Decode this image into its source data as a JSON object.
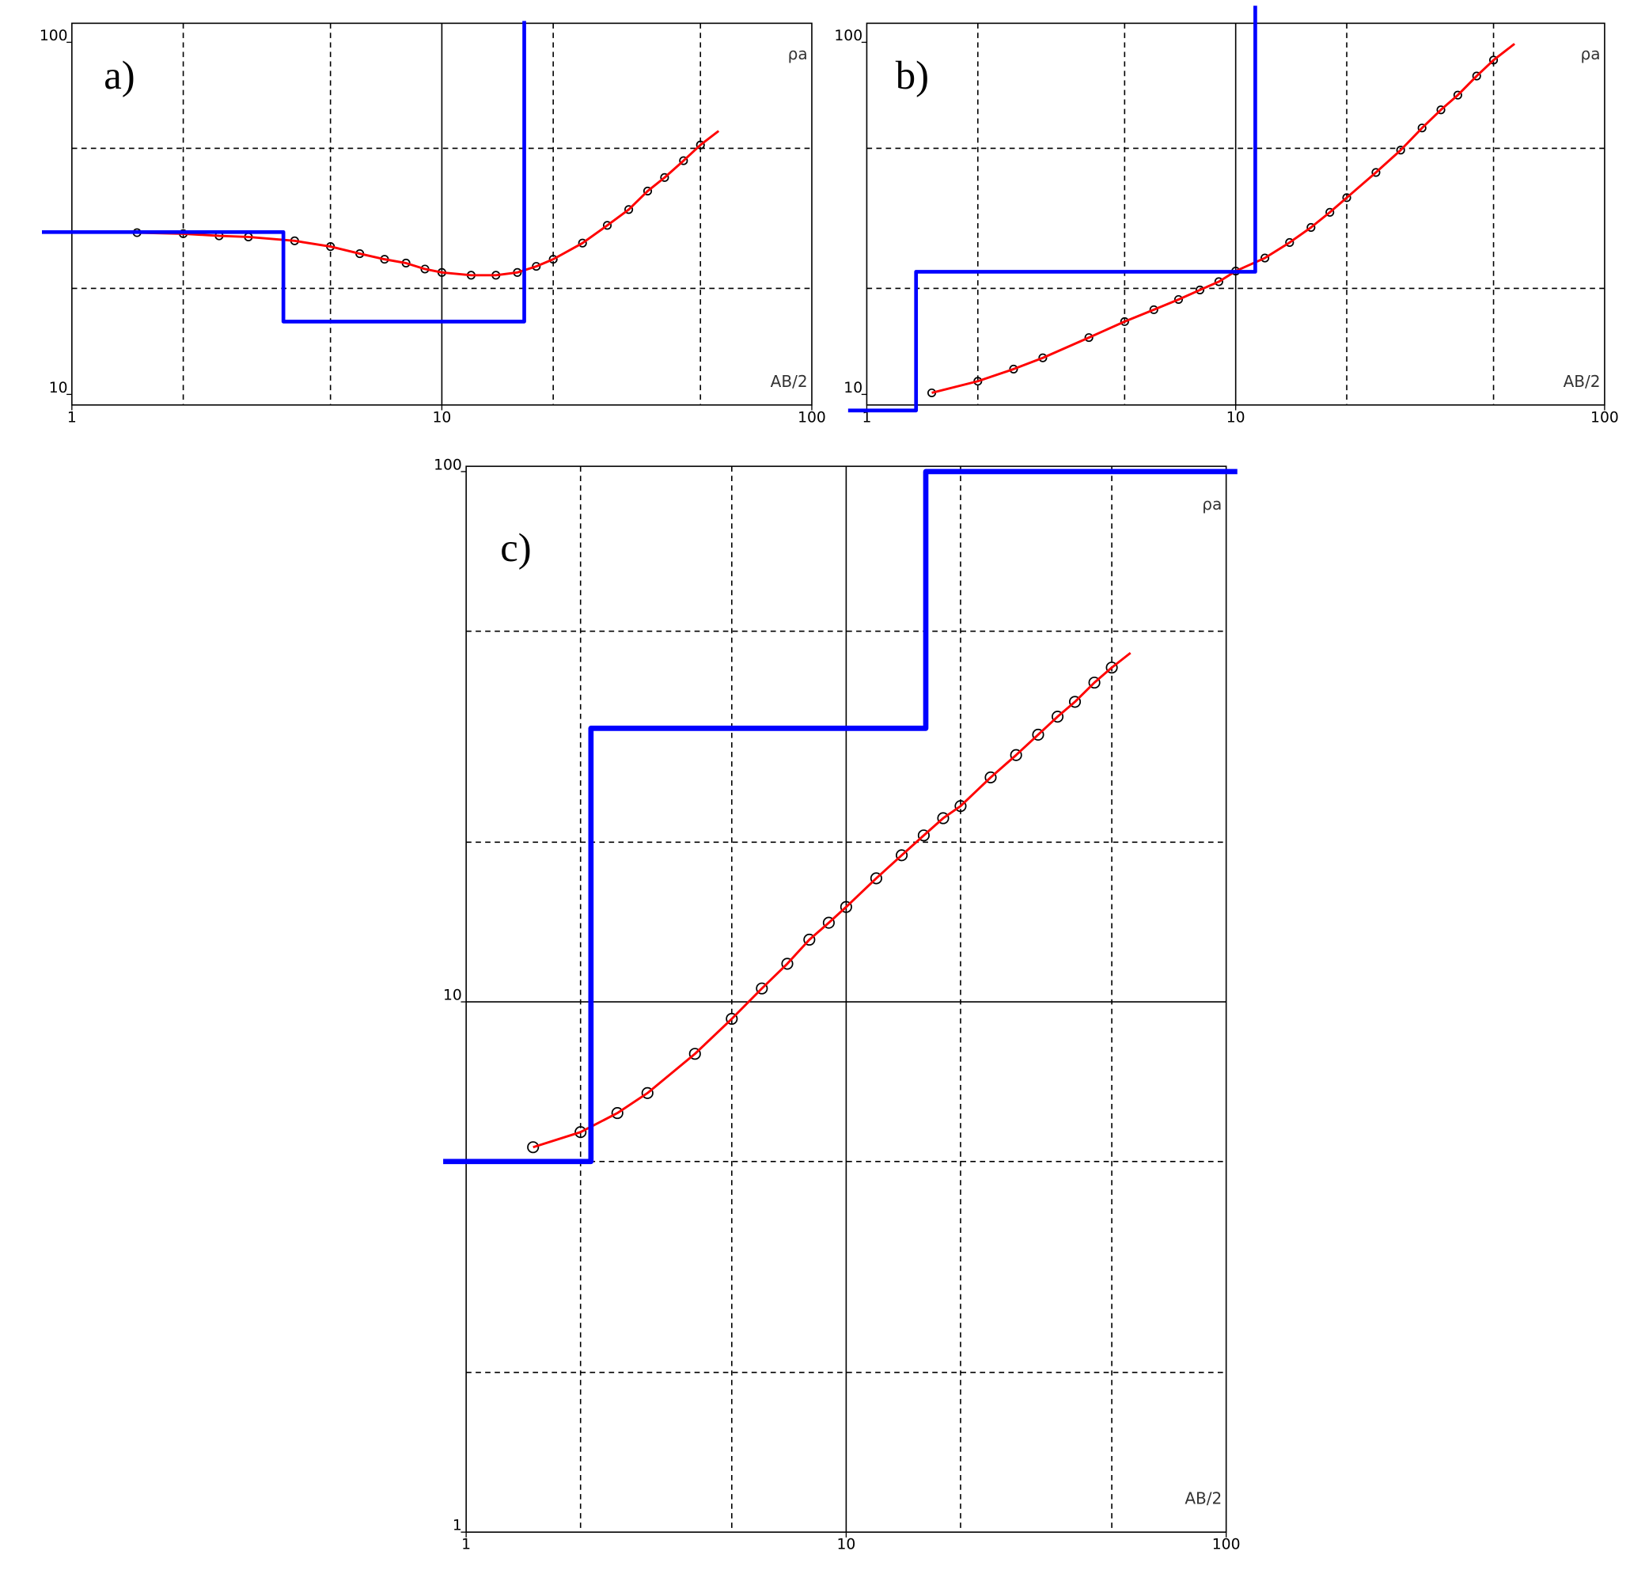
{
  "chart_data": [
    {
      "type": "line",
      "panel_label": "a)",
      "y_label": "ρa",
      "x_label": "AB/2",
      "log_x": true,
      "log_y": true,
      "xlim": [
        1,
        100
      ],
      "ylim": [
        10,
        100
      ],
      "xticks": [
        1,
        10,
        100
      ],
      "yticks": [
        10,
        100
      ],
      "xgrid": [
        2,
        5,
        10,
        20,
        50
      ],
      "ygrid": [
        20,
        50
      ],
      "series": [
        {
          "color": "#000000",
          "marker": "circle",
          "x": [
            1.5,
            2,
            2.5,
            3,
            4,
            5,
            6,
            7,
            8,
            9,
            10,
            12,
            14,
            16,
            18,
            20,
            24,
            28,
            32,
            36,
            40,
            45,
            50
          ],
          "values": [
            28.8,
            28.6,
            28.2,
            28.0,
            27.3,
            26.3,
            25.1,
            24.2,
            23.6,
            22.7,
            22.2,
            21.8,
            21.8,
            22.2,
            23.1,
            24.2,
            26.9,
            30.2,
            33.5,
            37.8,
            41.3,
            46.1,
            51.1
          ]
        },
        {
          "color": "#ff0000",
          "x": [
            1.5,
            2,
            2.5,
            3,
            4,
            5,
            6,
            7,
            8,
            9,
            10,
            12,
            14,
            16,
            18,
            20,
            24,
            28,
            32,
            36,
            40,
            45,
            50,
            56
          ],
          "values": [
            28.8,
            28.6,
            28.2,
            28.0,
            27.3,
            26.3,
            25.1,
            24.2,
            23.6,
            22.7,
            22.2,
            21.8,
            21.8,
            22.2,
            23.1,
            24.2,
            26.9,
            30.2,
            33.5,
            37.8,
            41.3,
            46.1,
            51.1,
            56
          ]
        },
        {
          "color": "#0000ff",
          "x": [
            0.83,
            3.73,
            3.73,
            16.7,
            16.7
          ],
          "values": [
            28.9,
            28.9,
            16.1,
            16.1,
            115
          ]
        }
      ]
    },
    {
      "type": "line",
      "panel_label": "b)",
      "y_label": "ρa",
      "x_label": "AB/2",
      "log_x": true,
      "log_y": true,
      "xlim": [
        1,
        100
      ],
      "ylim": [
        10,
        100
      ],
      "xticks": [
        1,
        10,
        100
      ],
      "yticks": [
        10,
        100
      ],
      "xgrid": [
        2,
        5,
        10,
        20,
        50
      ],
      "ygrid": [
        20,
        50
      ],
      "series": [
        {
          "color": "#000000",
          "marker": "circle",
          "x": [
            1.5,
            2,
            2.5,
            3,
            4,
            5,
            6,
            7,
            8,
            9,
            10,
            12,
            14,
            16,
            18,
            20,
            24,
            28,
            32,
            36,
            40,
            45,
            50
          ],
          "values": [
            10.1,
            10.9,
            11.8,
            12.7,
            14.5,
            16.1,
            17.4,
            18.6,
            19.8,
            20.9,
            22.4,
            24.4,
            27.0,
            29.8,
            32.9,
            36.2,
            42.7,
            49.4,
            57.1,
            64.3,
            70.8,
            80.2,
            89.0
          ]
        },
        {
          "color": "#ff0000",
          "x": [
            1.5,
            2,
            2.5,
            3,
            4,
            5,
            6,
            7,
            8,
            9,
            10,
            12,
            14,
            16,
            18,
            20,
            24,
            28,
            32,
            36,
            40,
            45,
            50,
            57
          ],
          "values": [
            10.1,
            10.9,
            11.8,
            12.7,
            14.5,
            16.1,
            17.4,
            18.6,
            19.8,
            20.9,
            22.4,
            24.4,
            27.0,
            29.8,
            32.9,
            36.2,
            42.7,
            49.4,
            57.1,
            64.3,
            70.8,
            80.2,
            89.0,
            99
          ]
        },
        {
          "color": "#0000ff",
          "x": [
            0.89,
            1.36,
            1.36,
            11.3,
            11.3
          ],
          "values": [
            9.0,
            9.0,
            22.3,
            22.3,
            127
          ]
        }
      ]
    },
    {
      "type": "line",
      "panel_label": "c)",
      "y_label": "ρa",
      "x_label": "AB/2",
      "log_x": true,
      "log_y": true,
      "xlim": [
        1,
        100
      ],
      "ylim": [
        1,
        100
      ],
      "xticks": [
        1,
        10,
        100
      ],
      "yticks": [
        1,
        10,
        100
      ],
      "xgrid": [
        2,
        5,
        10,
        20,
        50
      ],
      "ygrid": [
        2,
        5,
        10,
        20,
        50
      ],
      "series": [
        {
          "color": "#000000",
          "marker": "circle",
          "x": [
            1.5,
            2,
            2.5,
            3,
            4,
            5,
            6,
            7,
            8,
            9,
            10,
            12,
            14,
            16,
            18,
            20,
            24,
            28,
            32,
            36,
            40,
            45,
            50
          ],
          "values": [
            5.32,
            5.68,
            6.17,
            6.73,
            7.98,
            9.29,
            10.6,
            11.8,
            13.1,
            14.1,
            15.1,
            17.1,
            18.9,
            20.6,
            22.2,
            23.4,
            26.5,
            29.2,
            31.9,
            34.5,
            36.8,
            40.0,
            42.7
          ]
        },
        {
          "color": "#ff0000",
          "x": [
            1.5,
            2,
            2.5,
            3,
            4,
            5,
            6,
            7,
            8,
            9,
            10,
            12,
            14,
            16,
            18,
            20,
            24,
            28,
            32,
            36,
            40,
            45,
            50,
            56
          ],
          "values": [
            5.32,
            5.68,
            6.17,
            6.73,
            7.98,
            9.29,
            10.6,
            11.8,
            13.1,
            14.1,
            15.1,
            17.1,
            18.9,
            20.6,
            22.2,
            23.4,
            26.5,
            29.2,
            31.9,
            34.5,
            36.8,
            40.0,
            42.7,
            45.5
          ]
        },
        {
          "color": "#0000ff",
          "x": [
            0.87,
            2.13,
            2.13,
            16.2,
            16.2,
            107
          ],
          "values": [
            5.0,
            5.0,
            32.8,
            32.8,
            100,
            100
          ]
        }
      ]
    }
  ]
}
